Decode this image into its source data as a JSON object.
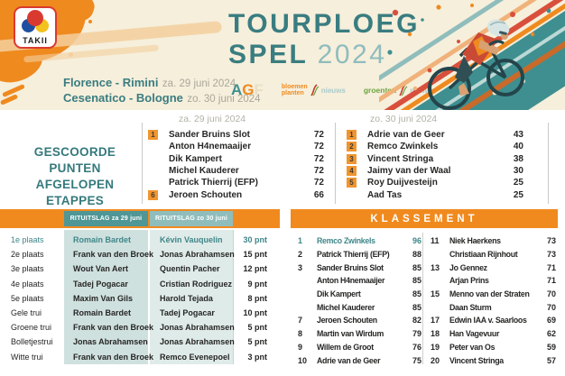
{
  "colors": {
    "accent_orange": "#f08a1e",
    "accent_teal": "#3a7d80",
    "highlight_teal": "#3f8688",
    "header_cream": "#f6efdc"
  },
  "header": {
    "logo_text": "TAKII",
    "title_line1": "TOURPLOEG",
    "title_word": "SPEL",
    "title_year": "2024",
    "stages": [
      {
        "route": "Florence - Rimini",
        "date": "za. 29 juni 2024"
      },
      {
        "route": "Cesenatico - Bologne",
        "date": "zo. 30 juni 2024"
      }
    ],
    "partners": {
      "agf": {
        "l1": "A",
        "l2": "G",
        "l3": "F"
      },
      "bloemen": {
        "line1": "bloemen",
        "line2": "planten",
        "suffix": "nieuws"
      },
      "groenten": {
        "word": "groenten",
        "suffix": "nieuws"
      }
    }
  },
  "scored": {
    "title1": "GESCOORDE PUNTEN",
    "title2": "AFGELOPEN ETAPPES",
    "stage1": {
      "date": "za. 29 juni 2024",
      "rows": [
        {
          "rank": "1",
          "name": "Sander Bruins Slot",
          "points": "72"
        },
        {
          "rank": "",
          "name": "Anton H4nemaaijer",
          "points": "72"
        },
        {
          "rank": "",
          "name": "Dik Kampert",
          "points": "72"
        },
        {
          "rank": "",
          "name": "Michel Kauderer",
          "points": "72"
        },
        {
          "rank": "",
          "name": "Patrick Thierrij (EFP)",
          "points": "72"
        },
        {
          "rank": "6",
          "name": "Jeroen Schouten",
          "points": "66"
        }
      ]
    },
    "stage2": {
      "date": "zo. 30 juni 2024",
      "rows": [
        {
          "rank": "1",
          "name": "Adrie van de Geer",
          "points": "43"
        },
        {
          "rank": "2",
          "name": "Remco Zwinkels",
          "points": "40"
        },
        {
          "rank": "3",
          "name": "Vincent Stringa",
          "points": "38"
        },
        {
          "rank": "4",
          "name": "Jaimy van der Waal",
          "points": "30"
        },
        {
          "rank": "5",
          "name": "Roy Duijvesteijn",
          "points": "25"
        },
        {
          "rank": "",
          "name": "Aad Tas",
          "points": "25"
        }
      ]
    }
  },
  "results": {
    "header1": "RITUITSLAG za 29 juni",
    "header2": "RITUITSLAG zo 30 juni",
    "rows": [
      {
        "label": "1e plaats",
        "rider1": "Romain Bardet",
        "rider2": "Kévin Vauquelin",
        "points": "30 pnt",
        "highlight": true
      },
      {
        "label": "2e plaats",
        "rider1": "Frank van den Broek",
        "rider2": "Jonas Abrahamsen",
        "points": "15 pnt",
        "highlight": false
      },
      {
        "label": "3e plaats",
        "rider1": "Wout Van Aert",
        "rider2": "Quentin Pacher",
        "points": "12 pnt",
        "highlight": false
      },
      {
        "label": "4e plaats",
        "rider1": "Tadej Pogacar",
        "rider2": "Cristian Rodriguez",
        "points": "9 pnt",
        "highlight": false
      },
      {
        "label": "5e plaats",
        "rider1": "Maxim Van Gils",
        "rider2": "Harold Tejada",
        "points": "8 pnt",
        "highlight": false
      },
      {
        "label": "Gele trui",
        "rider1": "Romain Bardet",
        "rider2": "Tadej Pogacar",
        "points": "10 pnt",
        "highlight": false
      },
      {
        "label": "Groene trui",
        "rider1": "Frank van den Broek",
        "rider2": "Jonas Abrahamsen",
        "points": "5 pnt",
        "highlight": false
      },
      {
        "label": "Bolletjestrui",
        "rider1": "Jonas Abrahamsen",
        "rider2": "Jonas Abrahamsen",
        "points": "5 pnt",
        "highlight": false
      },
      {
        "label": "Witte trui",
        "rider1": "Frank van den Broek",
        "rider2": "Remco Evenepoel",
        "points": "3 pnt",
        "highlight": false
      }
    ]
  },
  "klassement": {
    "title": "KLASSEMENT",
    "left": [
      {
        "rank": "1",
        "name": "Remco Zwinkels",
        "points": "96",
        "highlight": true
      },
      {
        "rank": "2",
        "name": "Patrick Thierrij (EFP)",
        "points": "88",
        "highlight": false
      },
      {
        "rank": "3",
        "name": "Sander Bruins Slot",
        "points": "85",
        "highlight": false
      },
      {
        "rank": "",
        "name": "Anton H4nemaaijer",
        "points": "85",
        "highlight": false
      },
      {
        "rank": "",
        "name": "Dik Kampert",
        "points": "85",
        "highlight": false
      },
      {
        "rank": "",
        "name": "Michel Kauderer",
        "points": "85",
        "highlight": false
      },
      {
        "rank": "7",
        "name": "Jeroen Schouten",
        "points": "82",
        "highlight": false
      },
      {
        "rank": "8",
        "name": "Martin van Wirdum",
        "points": "79",
        "highlight": false
      },
      {
        "rank": "9",
        "name": "Willem de Groot",
        "points": "76",
        "highlight": false
      },
      {
        "rank": "10",
        "name": "Adrie van de Geer",
        "points": "75",
        "highlight": false
      }
    ],
    "right": [
      {
        "rank": "11",
        "name": "Niek Haerkens",
        "points": "73",
        "highlight": false
      },
      {
        "rank": "",
        "name": "Christiaan Rijnhout",
        "points": "73",
        "highlight": false
      },
      {
        "rank": "13",
        "name": "Jo Gennez",
        "points": "71",
        "highlight": false
      },
      {
        "rank": "",
        "name": "Arjan Prins",
        "points": "71",
        "highlight": false
      },
      {
        "rank": "15",
        "name": "Menno van der Straten",
        "points": "70",
        "highlight": false
      },
      {
        "rank": "",
        "name": "Daan Sturm",
        "points": "70",
        "highlight": false
      },
      {
        "rank": "17",
        "name": "Edwin IAA v. Saarloos",
        "points": "69",
        "highlight": false
      },
      {
        "rank": "18",
        "name": "Han Vagevuur",
        "points": "62",
        "highlight": false
      },
      {
        "rank": "19",
        "name": "Peter van Os",
        "points": "59",
        "highlight": false
      },
      {
        "rank": "20",
        "name": "Vincent Stringa",
        "points": "57",
        "highlight": false
      }
    ]
  }
}
